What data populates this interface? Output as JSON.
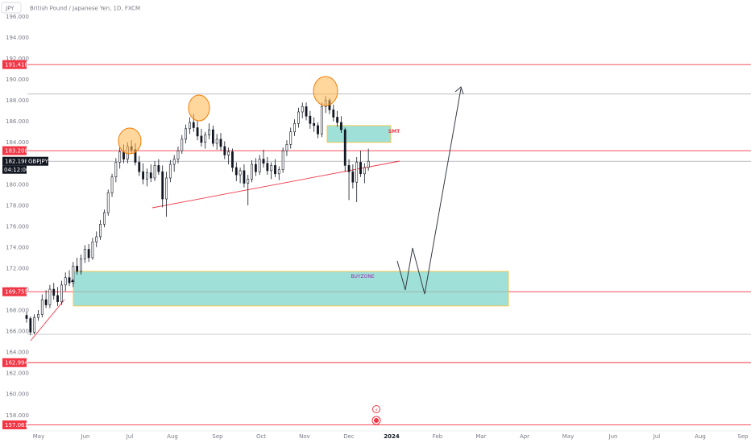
{
  "header": {
    "symbol_tab": "JPY",
    "title": "British Pound / Japanese Yen, 1D, FXCM"
  },
  "chart_data": {
    "type": "candlestick",
    "ylim": [
      156.5,
      196.5
    ],
    "y_ticks": [
      "196.000",
      "194.000",
      "192.000",
      "190.000",
      "188.000",
      "186.000",
      "184.000",
      "182.000",
      "180.000",
      "178.000",
      "176.000",
      "174.000",
      "172.000",
      "170.000",
      "168.000",
      "166.000",
      "164.000",
      "162.000",
      "160.000",
      "158.000"
    ],
    "x_labels": [
      "May",
      "Jun",
      "Jul",
      "Aug",
      "Sep",
      "Oct",
      "Nov",
      "Dec",
      "2024",
      "Feb",
      "Mar",
      "Apr",
      "May",
      "Jun",
      "Jul",
      "Aug",
      "Sep"
    ],
    "price_badges": [
      {
        "label": "191.418",
        "value": 191.418,
        "color": "#f23645"
      },
      {
        "label": "183.208",
        "value": 183.208,
        "color": "#f23645"
      },
      {
        "label": "169.755",
        "value": 169.755,
        "color": "#f23645"
      },
      {
        "label": "162.994",
        "value": 162.994,
        "color": "#f23645"
      },
      {
        "label": "157.061",
        "value": 157.061,
        "color": "#f23645"
      }
    ],
    "current_price": {
      "price": "182.198",
      "symbol": "GBPJPY",
      "countdown": "04:12:00",
      "value": 182.198
    },
    "horizontal_lines": [
      {
        "value": 191.418,
        "color": "#f23645"
      },
      {
        "value": 188.6,
        "color": "#9598a1"
      },
      {
        "value": 183.208,
        "color": "#f23645"
      },
      {
        "value": 182.198,
        "color": "#9598a1"
      },
      {
        "value": 169.755,
        "color": "#f23645"
      },
      {
        "value": 165.7,
        "color": "#9598a1"
      },
      {
        "value": 162.994,
        "color": "#f23645"
      },
      {
        "value": 157.061,
        "color": "#f23645"
      }
    ],
    "zones": [
      {
        "label": "BUYZONE",
        "from": "late May",
        "to": "early Apr",
        "low": 168.4,
        "high": 171.7,
        "fill": "#7fd6cb",
        "border": "#f5c542"
      },
      {
        "label": "SMT",
        "from": "mid Nov",
        "to": "early Jan",
        "low": 184.0,
        "high": 185.6,
        "fill": "#7fd6cb",
        "border": "#f5c542"
      }
    ],
    "tops": [
      {
        "label": "top-1",
        "approx_value": 183.9
      },
      {
        "label": "top-2",
        "approx_value": 186.6
      },
      {
        "label": "top-3",
        "approx_value": 188.9
      }
    ],
    "candles": [
      [
        167.5,
        167.8,
        166.8,
        167.2
      ],
      [
        167.2,
        167.4,
        165.6,
        165.9
      ],
      [
        165.9,
        167.6,
        165.7,
        167.3
      ],
      [
        167.3,
        168.0,
        167.0,
        167.6
      ],
      [
        167.6,
        169.5,
        167.3,
        169.0
      ],
      [
        169.0,
        169.9,
        168.2,
        168.5
      ],
      [
        168.5,
        170.4,
        168.2,
        170.0
      ],
      [
        170.0,
        170.6,
        169.0,
        169.4
      ],
      [
        169.4,
        170.2,
        168.4,
        168.8
      ],
      [
        168.8,
        170.8,
        168.5,
        170.4
      ],
      [
        170.4,
        171.6,
        169.8,
        171.1
      ],
      [
        171.1,
        171.8,
        170.3,
        170.6
      ],
      [
        170.6,
        172.6,
        170.2,
        172.2
      ],
      [
        172.2,
        173.0,
        171.4,
        171.7
      ],
      [
        171.7,
        173.3,
        171.4,
        172.9
      ],
      [
        172.9,
        174.2,
        172.5,
        173.8
      ],
      [
        173.8,
        174.3,
        172.6,
        173.0
      ],
      [
        173.0,
        174.9,
        172.8,
        174.5
      ],
      [
        174.5,
        175.5,
        174.0,
        175.0
      ],
      [
        175.0,
        176.6,
        174.7,
        176.2
      ],
      [
        176.2,
        177.6,
        175.9,
        177.3
      ],
      [
        177.3,
        179.5,
        177.0,
        179.2
      ],
      [
        179.2,
        181.0,
        178.8,
        180.7
      ],
      [
        180.7,
        182.5,
        180.2,
        182.1
      ],
      [
        182.1,
        183.6,
        181.5,
        183.1
      ],
      [
        183.1,
        183.8,
        182.0,
        182.4
      ],
      [
        182.4,
        184.0,
        182.0,
        183.6
      ],
      [
        183.6,
        184.2,
        182.9,
        183.3
      ],
      [
        183.3,
        183.9,
        181.8,
        182.1
      ],
      [
        182.1,
        182.7,
        180.8,
        181.2
      ],
      [
        181.2,
        182.0,
        180.0,
        180.5
      ],
      [
        180.5,
        181.5,
        179.8,
        181.1
      ],
      [
        181.1,
        181.9,
        180.2,
        180.6
      ],
      [
        180.6,
        182.2,
        180.3,
        181.8
      ],
      [
        181.8,
        182.4,
        180.9,
        181.2
      ],
      [
        181.2,
        181.8,
        177.8,
        178.6
      ],
      [
        178.6,
        181.2,
        176.9,
        180.6
      ],
      [
        180.6,
        182.3,
        180.2,
        181.9
      ],
      [
        181.9,
        182.8,
        181.2,
        182.4
      ],
      [
        182.4,
        183.6,
        182.0,
        183.2
      ],
      [
        183.2,
        184.7,
        182.9,
        184.3
      ],
      [
        184.3,
        185.7,
        183.9,
        185.3
      ],
      [
        185.3,
        186.4,
        184.8,
        185.9
      ],
      [
        185.9,
        186.7,
        185.0,
        185.4
      ],
      [
        185.4,
        186.1,
        184.2,
        184.6
      ],
      [
        184.6,
        185.3,
        183.6,
        184.0
      ],
      [
        184.0,
        185.0,
        183.4,
        184.7
      ],
      [
        184.7,
        185.8,
        184.3,
        185.2
      ],
      [
        185.2,
        185.6,
        183.6,
        183.9
      ],
      [
        183.9,
        184.8,
        183.3,
        184.3
      ],
      [
        184.3,
        184.9,
        183.2,
        183.6
      ],
      [
        183.6,
        184.1,
        182.4,
        182.8
      ],
      [
        182.8,
        183.5,
        181.9,
        183.1
      ],
      [
        183.1,
        183.4,
        181.2,
        181.6
      ],
      [
        181.6,
        182.1,
        180.3,
        180.9
      ],
      [
        180.9,
        181.6,
        180.1,
        181.3
      ],
      [
        181.3,
        181.9,
        179.7,
        180.1
      ],
      [
        180.1,
        180.9,
        178.0,
        180.5
      ],
      [
        180.5,
        182.3,
        180.2,
        181.9
      ],
      [
        181.9,
        182.5,
        180.8,
        181.2
      ],
      [
        181.2,
        182.8,
        180.9,
        182.4
      ],
      [
        182.4,
        183.3,
        181.6,
        182.0
      ],
      [
        182.0,
        182.6,
        180.9,
        181.3
      ],
      [
        181.3,
        182.1,
        180.5,
        181.8
      ],
      [
        181.8,
        182.4,
        180.7,
        181.0
      ],
      [
        181.0,
        181.7,
        180.4,
        181.4
      ],
      [
        181.4,
        183.5,
        181.1,
        183.2
      ],
      [
        183.2,
        184.2,
        182.7,
        183.8
      ],
      [
        183.8,
        185.4,
        183.4,
        185.0
      ],
      [
        185.0,
        186.2,
        184.6,
        185.8
      ],
      [
        185.8,
        187.3,
        185.4,
        186.9
      ],
      [
        186.9,
        187.8,
        186.3,
        187.4
      ],
      [
        187.4,
        187.8,
        186.1,
        186.5
      ],
      [
        186.5,
        187.0,
        185.3,
        185.8
      ],
      [
        185.8,
        186.4,
        185.0,
        185.6
      ],
      [
        185.6,
        185.9,
        184.4,
        184.8
      ],
      [
        184.8,
        187.8,
        184.5,
        187.4
      ],
      [
        187.4,
        188.4,
        186.8,
        188.0
      ],
      [
        188.0,
        188.2,
        186.7,
        187.1
      ],
      [
        187.1,
        187.6,
        186.0,
        186.4
      ],
      [
        186.4,
        187.0,
        185.5,
        185.9
      ],
      [
        185.9,
        186.5,
        184.9,
        185.2
      ],
      [
        185.2,
        185.4,
        181.2,
        181.8
      ],
      [
        181.8,
        182.4,
        178.5,
        181.2
      ],
      [
        181.2,
        181.9,
        179.6,
        180.2
      ],
      [
        180.2,
        182.6,
        178.3,
        182.1
      ],
      [
        182.1,
        183.2,
        180.7,
        181.0
      ],
      [
        181.0,
        182.0,
        180.1,
        181.6
      ],
      [
        181.6,
        183.4,
        181.3,
        182.2
      ]
    ]
  }
}
